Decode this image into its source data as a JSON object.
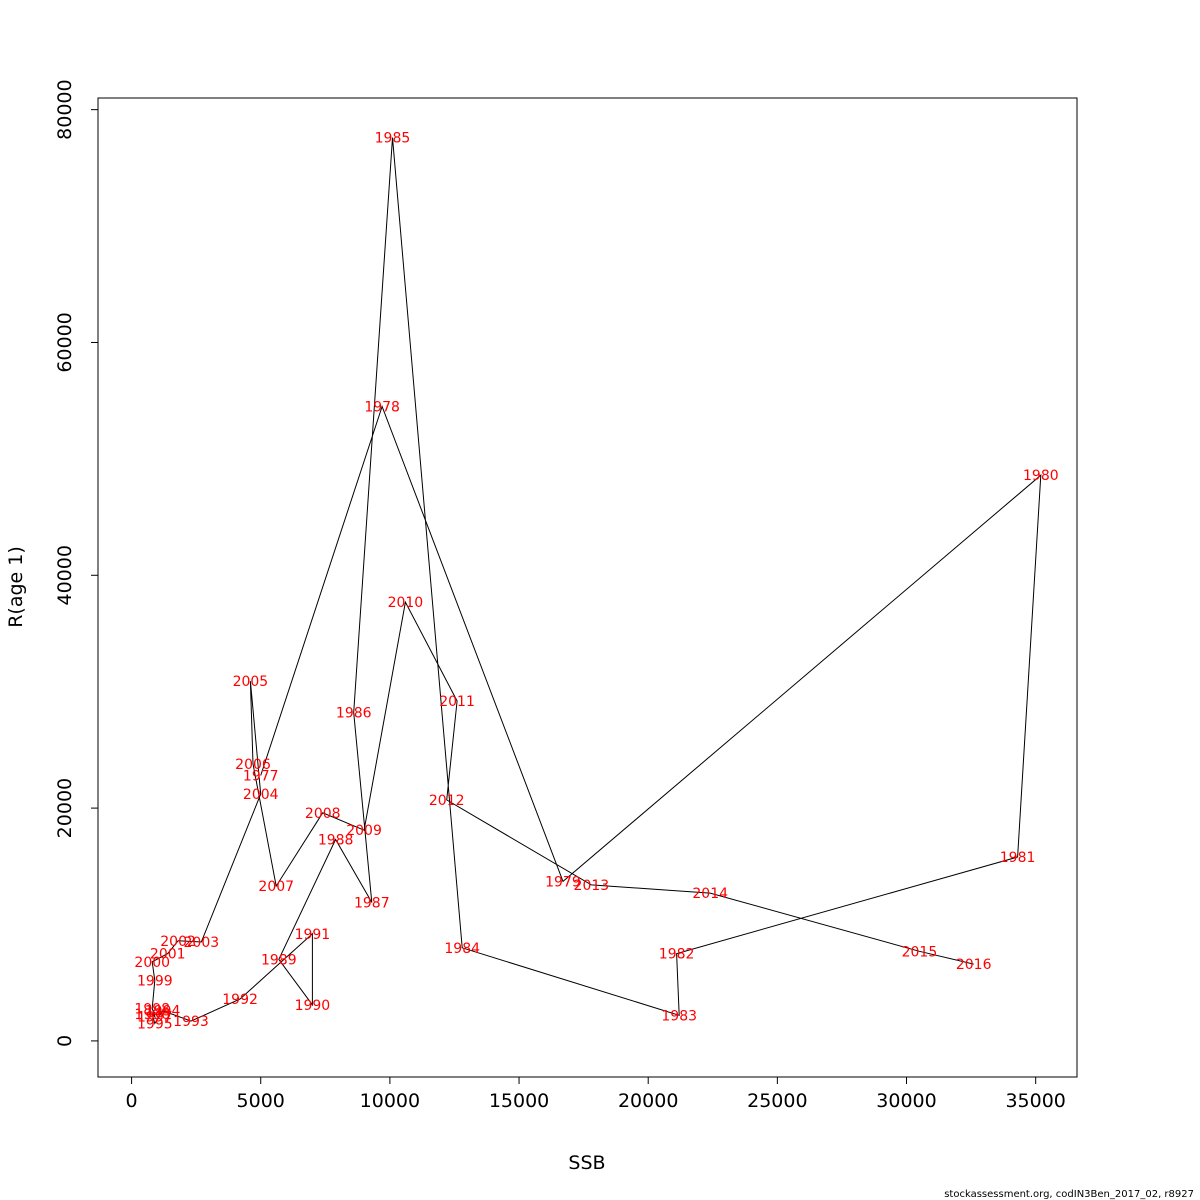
{
  "chart_data": {
    "type": "line",
    "xlabel": "SSB",
    "ylabel": "R(age 1)",
    "xlim": [
      -1300,
      36600
    ],
    "ylim": [
      -3100,
      81000
    ],
    "xticks": [
      0,
      5000,
      10000,
      15000,
      20000,
      25000,
      30000,
      35000
    ],
    "yticks": [
      0,
      20000,
      40000,
      60000,
      80000
    ],
    "xtick_labels": [
      "0",
      "5000",
      "10000",
      "15000",
      "20000",
      "25000",
      "30000",
      "35000"
    ],
    "ytick_labels": [
      "0",
      "20000",
      "40000",
      "60000",
      "80000"
    ],
    "line_color": "#000000",
    "label_color": "#ff0000",
    "grid": false,
    "points": [
      {
        "year": "1977",
        "x": 5000,
        "y": 22800
      },
      {
        "year": "1978",
        "x": 9700,
        "y": 54500
      },
      {
        "year": "1979",
        "x": 16700,
        "y": 13700
      },
      {
        "year": "1980",
        "x": 35200,
        "y": 48600
      },
      {
        "year": "1981",
        "x": 34300,
        "y": 15800
      },
      {
        "year": "1982",
        "x": 21100,
        "y": 7500
      },
      {
        "year": "1983",
        "x": 21200,
        "y": 2200
      },
      {
        "year": "1984",
        "x": 12800,
        "y": 8000
      },
      {
        "year": "1985",
        "x": 10100,
        "y": 77600
      },
      {
        "year": "1986",
        "x": 8600,
        "y": 28200
      },
      {
        "year": "1987",
        "x": 9300,
        "y": 11900
      },
      {
        "year": "1988",
        "x": 7900,
        "y": 17300
      },
      {
        "year": "1989",
        "x": 5700,
        "y": 7000
      },
      {
        "year": "1990",
        "x": 7000,
        "y": 3100
      },
      {
        "year": "1991",
        "x": 7000,
        "y": 9200
      },
      {
        "year": "1992",
        "x": 4200,
        "y": 3600
      },
      {
        "year": "1993",
        "x": 2300,
        "y": 1700
      },
      {
        "year": "1994",
        "x": 1200,
        "y": 2600
      },
      {
        "year": "1995",
        "x": 900,
        "y": 1500
      },
      {
        "year": "1996",
        "x": 800,
        "y": 2300
      },
      {
        "year": "1997",
        "x": 900,
        "y": 2100
      },
      {
        "year": "1998",
        "x": 800,
        "y": 2800
      },
      {
        "year": "1999",
        "x": 900,
        "y": 5200
      },
      {
        "year": "2000",
        "x": 800,
        "y": 6800
      },
      {
        "year": "2001",
        "x": 1400,
        "y": 7500
      },
      {
        "year": "2002",
        "x": 1800,
        "y": 8600
      },
      {
        "year": "2003",
        "x": 2700,
        "y": 8500
      },
      {
        "year": "2004",
        "x": 5000,
        "y": 21200
      },
      {
        "year": "2005",
        "x": 4600,
        "y": 30900
      },
      {
        "year": "2006",
        "x": 4700,
        "y": 23800
      },
      {
        "year": "2007",
        "x": 5600,
        "y": 13300
      },
      {
        "year": "2008",
        "x": 7400,
        "y": 19600
      },
      {
        "year": "2009",
        "x": 9000,
        "y": 18100
      },
      {
        "year": "2010",
        "x": 10600,
        "y": 37700
      },
      {
        "year": "2011",
        "x": 12600,
        "y": 29200
      },
      {
        "year": "2012",
        "x": 12200,
        "y": 20700
      },
      {
        "year": "2013",
        "x": 17800,
        "y": 13400
      },
      {
        "year": "2014",
        "x": 22400,
        "y": 12700
      },
      {
        "year": "2015",
        "x": 30500,
        "y": 7700
      },
      {
        "year": "2016",
        "x": 32600,
        "y": 6600
      }
    ]
  },
  "footer": "stockassessment.org, codIN3Ben_2017_02, r8927"
}
